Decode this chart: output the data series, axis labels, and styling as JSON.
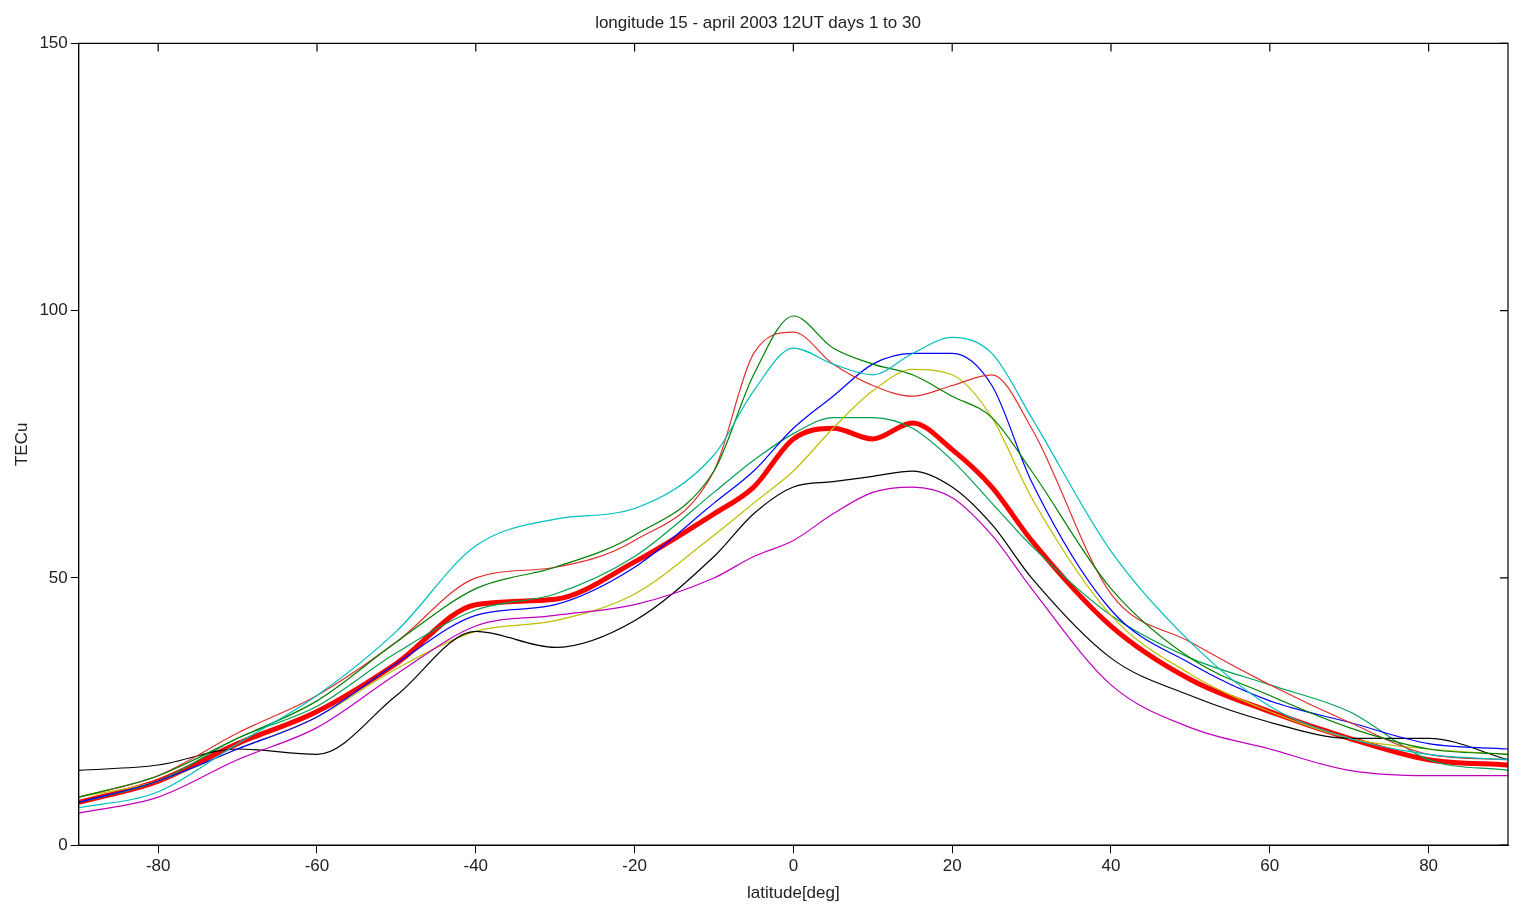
{
  "chart_data": {
    "type": "line",
    "title": "longitude 15 - april 2003 12UT days 1 to 30",
    "xlabel": "latitude[deg]",
    "ylabel": "TECu",
    "x": [
      -90,
      -80,
      -70,
      -60,
      -50,
      -40,
      -30,
      -20,
      -10,
      -5,
      0,
      5,
      10,
      15,
      20,
      25,
      30,
      40,
      50,
      60,
      70,
      80,
      90
    ],
    "xlim": [
      -90,
      90
    ],
    "xticks": [
      -80,
      -60,
      -40,
      -20,
      0,
      20,
      40,
      60,
      80
    ],
    "ylim": [
      0,
      150
    ],
    "yticks": [
      0,
      50,
      100,
      150
    ],
    "grid": false,
    "legend": false,
    "marker": "none",
    "line_style": "solid",
    "series": [
      {
        "color": "#00bfbf",
        "values": [
          7,
          10,
          19,
          28,
          40,
          56,
          61,
          63,
          73,
          85,
          93,
          90,
          88,
          92,
          95,
          92,
          80,
          55,
          38,
          26,
          20,
          17,
          16
        ]
      },
      {
        "color": "#008000",
        "values": [
          9,
          13,
          20,
          27,
          38,
          48,
          52,
          58,
          70,
          88,
          99,
          93,
          90,
          88,
          84,
          80,
          70,
          48,
          35,
          28,
          22,
          18,
          17
        ]
      },
      {
        "color": "#bf00bf",
        "values": [
          6,
          9,
          16,
          22,
          32,
          41,
          43,
          45,
          50,
          54,
          57,
          62,
          66,
          67,
          65,
          58,
          48,
          30,
          22,
          18,
          14,
          13,
          13
        ]
      },
      {
        "color": "#e03030",
        "values": [
          9,
          13,
          21,
          28,
          38,
          50,
          52,
          57,
          70,
          92,
          96,
          90,
          86,
          84,
          86,
          88,
          78,
          47,
          38,
          30,
          23,
          17,
          16
        ]
      },
      {
        "color": "#0000ff",
        "values": [
          8,
          12,
          18,
          24,
          34,
          43,
          45,
          52,
          64,
          70,
          78,
          84,
          90,
          92,
          92,
          86,
          68,
          44,
          34,
          27,
          23,
          19,
          18
        ]
      },
      {
        "color": "#000000",
        "values": [
          14,
          15,
          18,
          17,
          28,
          40,
          37,
          42,
          54,
          62,
          67,
          68,
          69,
          70,
          67,
          60,
          50,
          35,
          28,
          23,
          20,
          20,
          16
        ]
      },
      {
        "color": "#bfbf00",
        "values": [
          9,
          12,
          18,
          24,
          33,
          40,
          42,
          47,
          58,
          64,
          70,
          78,
          85,
          89,
          88,
          80,
          65,
          43,
          32,
          25,
          20,
          18,
          17
        ]
      },
      {
        "color": "#00a050",
        "values": [
          8,
          12,
          20,
          26,
          36,
          44,
          47,
          54,
          66,
          72,
          77,
          80,
          80,
          78,
          72,
          64,
          56,
          43,
          35,
          30,
          25,
          16,
          14
        ]
      },
      {
        "color": "#ff0000",
        "values": [
          8,
          12,
          19,
          25,
          34,
          45,
          46,
          53,
          62,
          67,
          76,
          78,
          76,
          79,
          74,
          67,
          57,
          41,
          31,
          25,
          20,
          16,
          15
        ]
      }
    ]
  }
}
